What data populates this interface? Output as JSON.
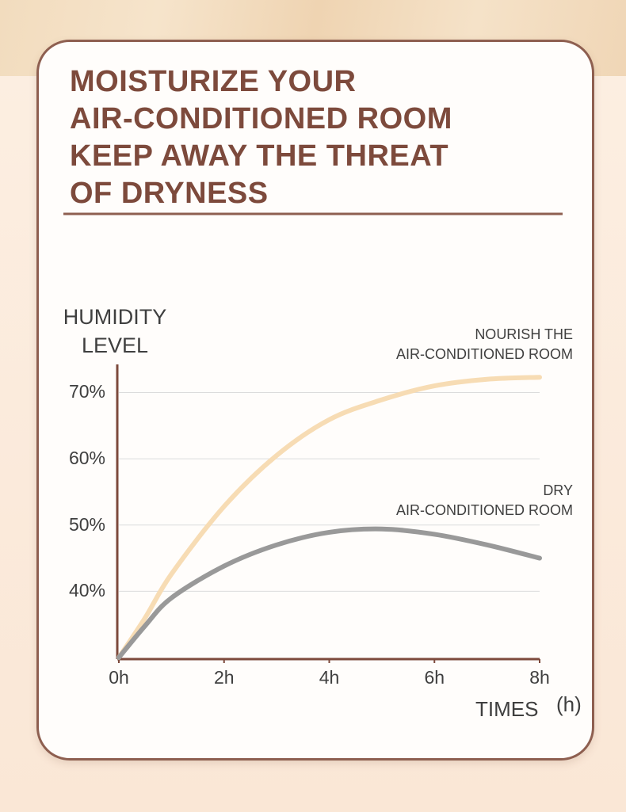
{
  "chart_data": {
    "type": "line",
    "title": "MOISTURIZE YOUR\nAIR-CONDITIONED ROOM\nKEEP AWAY THE THREAT\nOF DRYNESS",
    "y_label": "HUMIDITY\nLEVEL",
    "x_label": "TIMES",
    "x_unit": "(h)",
    "x": [
      0,
      0.5,
      1,
      2,
      3,
      4,
      5,
      6,
      7,
      8
    ],
    "series": [
      {
        "name": "NOURISH THE\nAIR-CONDITIONED ROOM",
        "color": "#f7dcb4",
        "values": [
          30,
          36,
          42.6,
          52.8,
          60.5,
          65.9,
          68.9,
          71,
          72,
          72.3
        ]
      },
      {
        "name": "DRY\nAIR-CONDITIONED ROOM",
        "color": "#999999",
        "values": [
          30,
          34.8,
          39,
          43.8,
          47,
          48.9,
          49.4,
          48.6,
          47,
          45
        ]
      }
    ],
    "xlim": [
      0,
      8
    ],
    "xticks": [
      {
        "value": 0,
        "label": "0h"
      },
      {
        "value": 2,
        "label": "2h"
      },
      {
        "value": 4,
        "label": "4h"
      },
      {
        "value": 6,
        "label": "6h"
      },
      {
        "value": 8,
        "label": "8h"
      }
    ],
    "ylim": [
      30,
      74
    ],
    "yticks": [
      {
        "value": 40,
        "label": "40%"
      },
      {
        "value": 50,
        "label": "50%"
      },
      {
        "value": 60,
        "label": "60%"
      },
      {
        "value": 70,
        "label": "70%"
      }
    ],
    "grid": true
  }
}
